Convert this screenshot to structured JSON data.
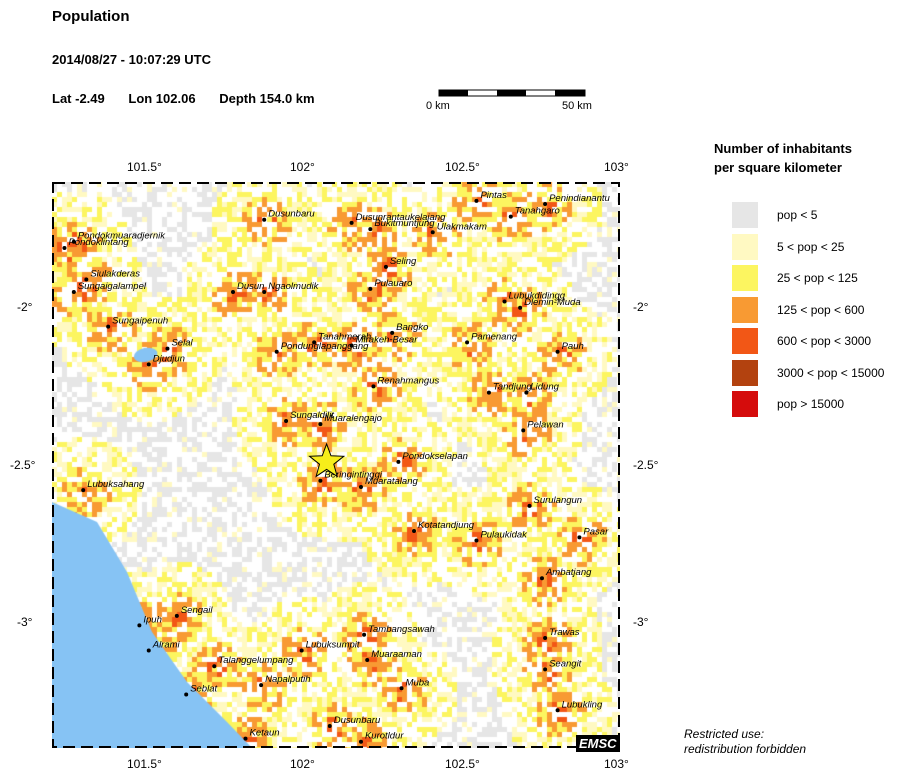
{
  "header": {
    "title": "Population",
    "datetime": "2014/08/27 - 10:07:29 UTC",
    "lat": "Lat -2.49",
    "lon": "Lon 102.06",
    "depth": "Depth 154.0 km"
  },
  "scalebar": {
    "left_label": "0 km",
    "right_label": "50 km"
  },
  "axes": {
    "lon_ticks": [
      "101.5°",
      "102°",
      "102.5°",
      "103°"
    ],
    "lat_ticks": [
      "-2°",
      "-2.5°",
      "-3°"
    ],
    "lon_range": [
      101.18,
      103.0
    ],
    "lat_range": [
      -1.6,
      -3.4
    ]
  },
  "epicenter": {
    "lon": 102.06,
    "lat": -2.49,
    "color": "#f7ee1a"
  },
  "places": [
    {
      "name": "Pintas",
      "lon": 102.54,
      "lat": -1.66
    },
    {
      "name": "Penindianantu",
      "lon": 102.76,
      "lat": -1.67
    },
    {
      "name": "Dusunbaru",
      "lon": 101.86,
      "lat": -1.72
    },
    {
      "name": "Dusunrantaukelajang",
      "lon": 102.14,
      "lat": -1.73
    },
    {
      "name": "Bukitmuntjung",
      "lon": 102.2,
      "lat": -1.75
    },
    {
      "name": "Ulakmakam",
      "lon": 102.4,
      "lat": -1.76
    },
    {
      "name": "Tanahgaro",
      "lon": 102.65,
      "lat": -1.71
    },
    {
      "name": "Pondokmuaradjernik",
      "lon": 101.25,
      "lat": -1.79
    },
    {
      "name": "Pondoklintang",
      "lon": 101.22,
      "lat": -1.81
    },
    {
      "name": "Seling",
      "lon": 102.25,
      "lat": -1.87
    },
    {
      "name": "Siulakderas",
      "lon": 101.29,
      "lat": -1.91
    },
    {
      "name": "Pulauaro",
      "lon": 102.2,
      "lat": -1.94
    },
    {
      "name": "Sungaigalampel",
      "lon": 101.25,
      "lat": -1.95
    },
    {
      "name": "Dusun",
      "lon": 101.76,
      "lat": -1.95
    },
    {
      "name": "Ngaolmudik",
      "lon": 101.86,
      "lat": -1.95
    },
    {
      "name": "Lubukdidingg",
      "lon": 102.63,
      "lat": -1.98
    },
    {
      "name": "Dlemin-Muda",
      "lon": 102.68,
      "lat": -2.0
    },
    {
      "name": "Sungaipenuh",
      "lon": 101.36,
      "lat": -2.06
    },
    {
      "name": "Bangko",
      "lon": 102.27,
      "lat": -2.08
    },
    {
      "name": "Pamenang",
      "lon": 102.51,
      "lat": -2.11
    },
    {
      "name": "Selal",
      "lon": 101.55,
      "lat": -2.13
    },
    {
      "name": "Tanahmerah",
      "lon": 102.02,
      "lat": -2.11
    },
    {
      "name": "Mlrakeh-Besar",
      "lon": 102.14,
      "lat": -2.12
    },
    {
      "name": "Pondunglapanggang",
      "lon": 101.9,
      "lat": -2.14
    },
    {
      "name": "Pauh",
      "lon": 102.8,
      "lat": -2.14
    },
    {
      "name": "Djudjun",
      "lon": 101.49,
      "lat": -2.18
    },
    {
      "name": "Renahmangus",
      "lon": 102.21,
      "lat": -2.25
    },
    {
      "name": "Tandjung",
      "lon": 102.58,
      "lat": -2.27
    },
    {
      "name": "Lidung",
      "lon": 102.7,
      "lat": -2.27
    },
    {
      "name": "Sungaldilit",
      "lon": 101.93,
      "lat": -2.36
    },
    {
      "name": "Muaralengajo",
      "lon": 102.04,
      "lat": -2.37
    },
    {
      "name": "Pelawan",
      "lon": 102.69,
      "lat": -2.39
    },
    {
      "name": "Pondokselapan",
      "lon": 102.29,
      "lat": -2.49
    },
    {
      "name": "Beringintinggi",
      "lon": 102.04,
      "lat": -2.55
    },
    {
      "name": "Muaratalang",
      "lon": 102.17,
      "lat": -2.57
    },
    {
      "name": "Lubuksahang",
      "lon": 101.28,
      "lat": -2.58
    },
    {
      "name": "Surulangun",
      "lon": 102.71,
      "lat": -2.63
    },
    {
      "name": "Kotatandjung",
      "lon": 102.34,
      "lat": -2.71
    },
    {
      "name": "Pulaukidak",
      "lon": 102.54,
      "lat": -2.74
    },
    {
      "name": "Pasar",
      "lon": 102.87,
      "lat": -2.73
    },
    {
      "name": "Ambatjang",
      "lon": 102.75,
      "lat": -2.86
    },
    {
      "name": "Sengail",
      "lon": 101.58,
      "lat": -2.98
    },
    {
      "name": "Ipuh",
      "lon": 101.46,
      "lat": -3.01
    },
    {
      "name": "Trawas",
      "lon": 102.76,
      "lat": -3.05
    },
    {
      "name": "Tambangsawah",
      "lon": 102.18,
      "lat": -3.04
    },
    {
      "name": "Alrami",
      "lon": 101.49,
      "lat": -3.09
    },
    {
      "name": "Lubuksumpit",
      "lon": 101.98,
      "lat": -3.09
    },
    {
      "name": "Seangit",
      "lon": 102.76,
      "lat": -3.15
    },
    {
      "name": "Muaraaman",
      "lon": 102.19,
      "lat": -3.12
    },
    {
      "name": "Talanggelumpang",
      "lon": 101.7,
      "lat": -3.14
    },
    {
      "name": "Napalputih",
      "lon": 101.85,
      "lat": -3.2
    },
    {
      "name": "Muba",
      "lon": 102.3,
      "lat": -3.21
    },
    {
      "name": "Seblat",
      "lon": 101.61,
      "lat": -3.23
    },
    {
      "name": "Lubukling",
      "lon": 102.8,
      "lat": -3.28
    },
    {
      "name": "Dusunbaru",
      "lon": 102.07,
      "lat": -3.33
    },
    {
      "name": "Ketaun",
      "lon": 101.8,
      "lat": -3.37
    },
    {
      "name": "Kurotldur",
      "lon": 102.17,
      "lat": -3.38
    }
  ],
  "legend": {
    "title_line1": "Number of inhabitants",
    "title_line2": "per square kilometer",
    "items": [
      {
        "label": "pop < 5",
        "color": "#e6e6e6"
      },
      {
        "label": "5 < pop < 25",
        "color": "#fff9c2"
      },
      {
        "label": "25 < pop < 125",
        "color": "#fcf560"
      },
      {
        "label": "125 < pop < 600",
        "color": "#f89a33"
      },
      {
        "label": "600 < pop < 3000",
        "color": "#f25716"
      },
      {
        "label": "3000 < pop < 15000",
        "color": "#b3420f"
      },
      {
        "label": "pop > 15000",
        "color": "#d50c0c"
      }
    ]
  },
  "sea_color": "#86c3f4",
  "notice": {
    "line1": "Restricted use:",
    "line2": "redistribution forbidden"
  },
  "badge": "EMSC"
}
